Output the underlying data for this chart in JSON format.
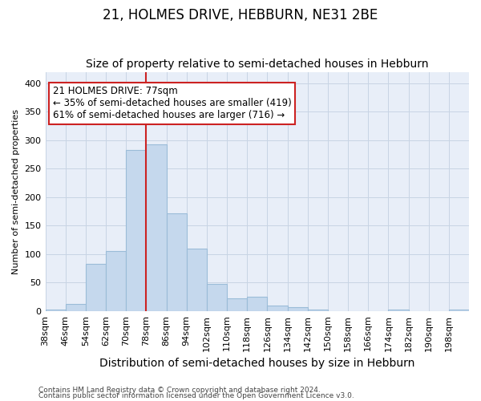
{
  "title": "21, HOLMES DRIVE, HEBBURN, NE31 2BE",
  "subtitle": "Size of property relative to semi-detached houses in Hebburn",
  "xlabel": "Distribution of semi-detached houses by size in Hebburn",
  "ylabel": "Number of semi-detached properties",
  "categories": [
    "38sqm",
    "46sqm",
    "54sqm",
    "62sqm",
    "70sqm",
    "78sqm",
    "86sqm",
    "94sqm",
    "102sqm",
    "110sqm",
    "118sqm",
    "126sqm",
    "134sqm",
    "142sqm",
    "150sqm",
    "158sqm",
    "166sqm",
    "174sqm",
    "182sqm",
    "190sqm",
    "198sqm"
  ],
  "values": [
    3,
    13,
    83,
    105,
    283,
    293,
    172,
    110,
    48,
    22,
    25,
    9,
    7,
    3,
    0,
    0,
    0,
    3,
    0,
    0,
    3
  ],
  "bar_color": "#c5d8ed",
  "bar_edge_color": "#9bbcd8",
  "grid_color": "#c8d4e4",
  "background_color": "#e8eef8",
  "annotation_text_line1": "21 HOLMES DRIVE: 77sqm",
  "annotation_text_line2": "← 35% of semi-detached houses are smaller (419)",
  "annotation_text_line3": "61% of semi-detached houses are larger (716) →",
  "vline_x": 78,
  "ylim": [
    0,
    420
  ],
  "yticks": [
    0,
    50,
    100,
    150,
    200,
    250,
    300,
    350,
    400
  ],
  "footer_line1": "Contains HM Land Registry data © Crown copyright and database right 2024.",
  "footer_line2": "Contains public sector information licensed under the Open Government Licence v3.0.",
  "title_fontsize": 12,
  "subtitle_fontsize": 10,
  "annotation_box_facecolor": "white",
  "annotation_box_edge": "#cc2222",
  "vline_color": "#cc2222",
  "annot_fontsize": 8.5,
  "xlabel_fontsize": 10,
  "ylabel_fontsize": 8,
  "tick_fontsize": 8
}
